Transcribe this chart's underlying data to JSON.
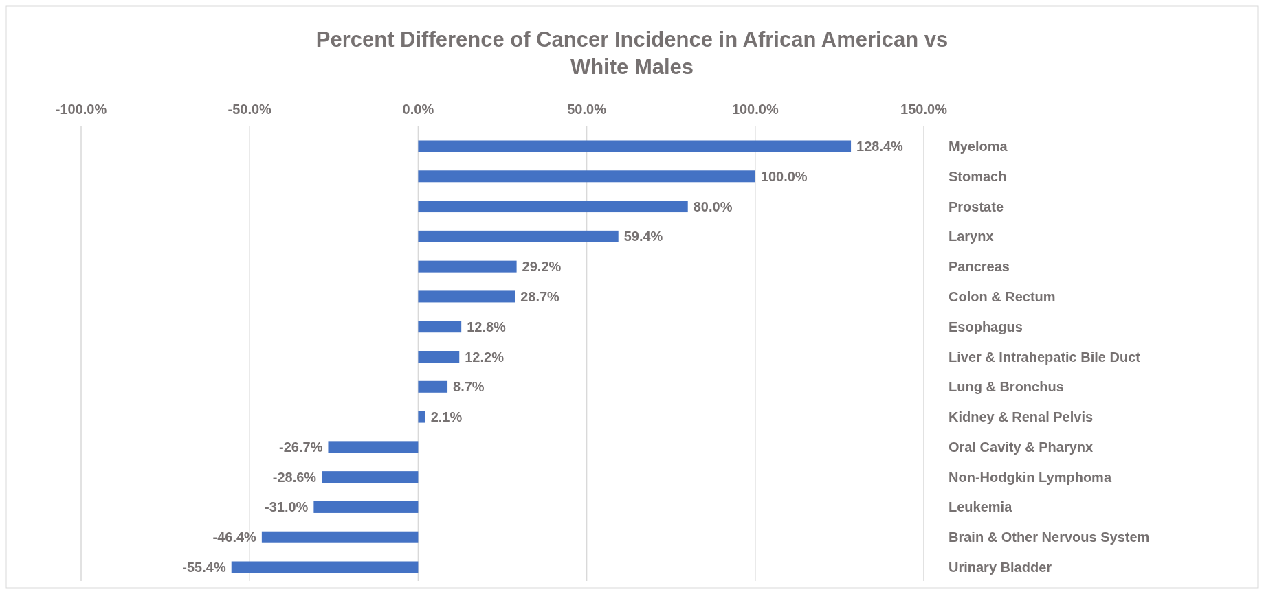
{
  "chart_data": {
    "type": "bar",
    "orientation": "horizontal",
    "title": "Percent Difference of Cancer Incidence in African American vs White Males",
    "categories": [
      "Myeloma",
      "Stomach",
      "Prostate",
      "Larynx",
      "Pancreas",
      "Colon & Rectum",
      "Esophagus",
      "Liver & Intrahepatic Bile Duct",
      "Lung & Bronchus",
      "Kidney & Renal Pelvis",
      "Oral Cavity & Pharynx",
      "Non-Hodgkin Lymphoma",
      "Leukemia",
      "Brain & Other Nervous System",
      "Urinary Bladder"
    ],
    "values": [
      128.4,
      100.0,
      80.0,
      59.4,
      29.2,
      28.7,
      12.8,
      12.2,
      8.7,
      2.1,
      -26.7,
      -28.6,
      -31.0,
      -46.4,
      -55.4
    ],
    "value_labels": [
      "128.4%",
      "100.0%",
      "80.0%",
      "59.4%",
      "29.2%",
      "28.7%",
      "12.8%",
      "12.2%",
      "8.7%",
      "2.1%",
      "-26.7%",
      "-28.6%",
      "-31.0%",
      "-46.4%",
      "-55.4%"
    ],
    "color": "#4472c4",
    "xlim": [
      -100,
      150
    ],
    "xticks": [
      {
        "value": -100,
        "label": "-100.0%"
      },
      {
        "value": -50,
        "label": "-50.0%"
      },
      {
        "value": 0,
        "label": "0.0%"
      },
      {
        "value": 50,
        "label": "50.0%"
      },
      {
        "value": 100,
        "label": "100.0%"
      },
      {
        "value": 150,
        "label": "150.0%"
      }
    ],
    "grid": "x"
  }
}
